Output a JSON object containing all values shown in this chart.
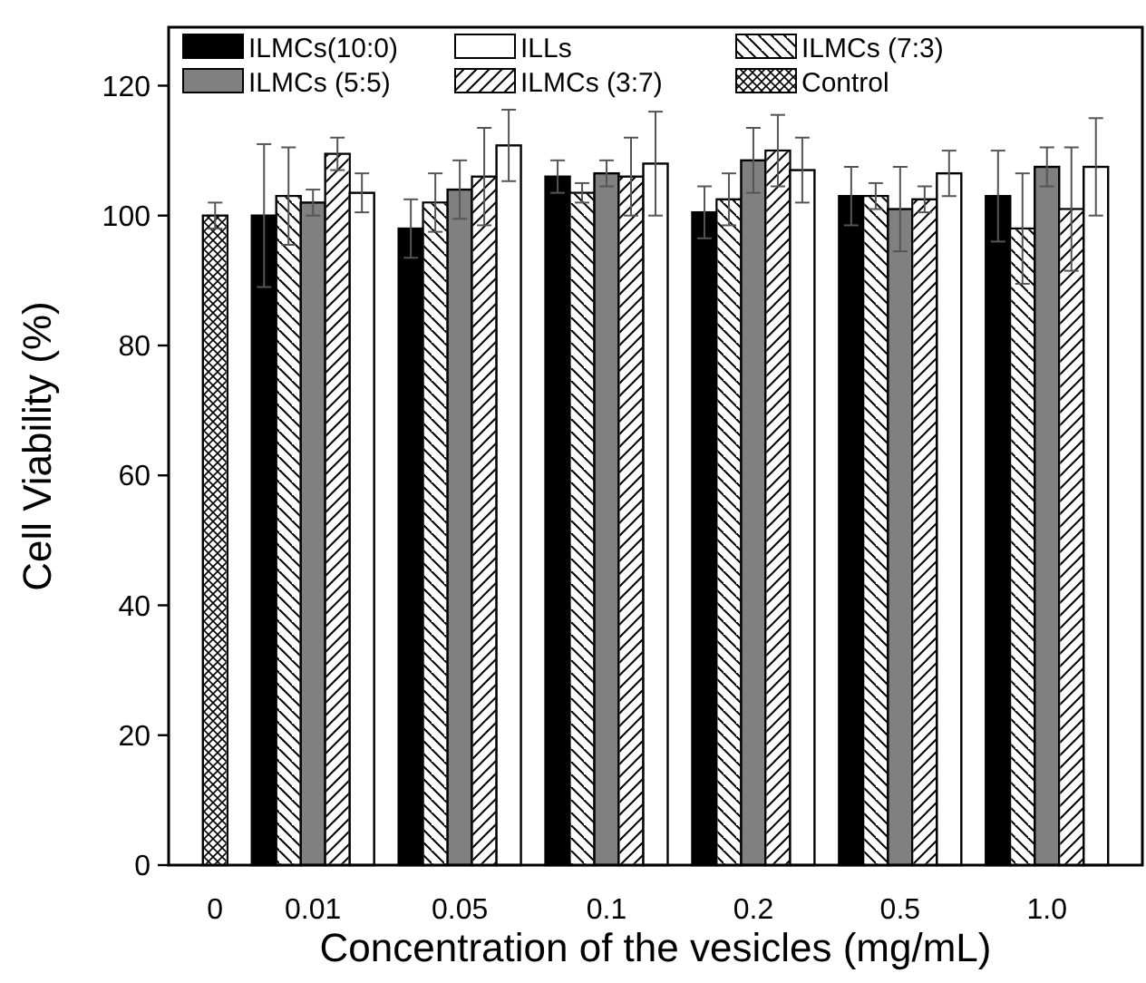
{
  "chart_data": {
    "type": "bar",
    "xlabel": "Concentration of the vesicles (mg/mL)",
    "ylabel": "Cell Viability (%)",
    "categories": [
      "0",
      "0.01",
      "0.05",
      "0.1",
      "0.2",
      "0.5",
      "1.0"
    ],
    "series": [
      {
        "name": "ILMCs(10:0)",
        "color": "#000000",
        "values": [
          null,
          100,
          98,
          106,
          100.5,
          103,
          103
        ],
        "errors": [
          null,
          11,
          4.5,
          2.5,
          4,
          4.5,
          7
        ]
      },
      {
        "name": "ILMCs (7:3)",
        "color": "#ffffff",
        "values": [
          null,
          103,
          102,
          103.5,
          102.5,
          103,
          98
        ],
        "errors": [
          null,
          7.5,
          4.5,
          1.5,
          4,
          2,
          8.5
        ]
      },
      {
        "name": "ILMCs (5:5)",
        "color": "#808080",
        "values": [
          null,
          102,
          104,
          106.5,
          108.5,
          101,
          107.5
        ],
        "errors": [
          null,
          2,
          4.5,
          2,
          5,
          6.5,
          3
        ]
      },
      {
        "name": "ILMCs (3:7)",
        "color": "#ffffff",
        "values": [
          null,
          109.5,
          106,
          106,
          110,
          102.5,
          101
        ],
        "errors": [
          null,
          2.5,
          7.5,
          6,
          5.5,
          2,
          9.5
        ]
      },
      {
        "name": "ILLs",
        "color": "#ffffff",
        "values": [
          null,
          103.5,
          110.8,
          108,
          107,
          106.5,
          107.5
        ],
        "errors": [
          null,
          3,
          5.5,
          8,
          5,
          3.5,
          7.5
        ]
      },
      {
        "name": "Control",
        "color": "#ffffff",
        "values": [
          100,
          null,
          null,
          null,
          null,
          null,
          null
        ],
        "errors": [
          2,
          null,
          null,
          null,
          null,
          null,
          null
        ]
      }
    ],
    "ylim": [
      0,
      129
    ],
    "yticks": [
      0,
      20,
      40,
      60,
      80,
      100,
      120
    ],
    "legend": "top left",
    "grid": false
  }
}
